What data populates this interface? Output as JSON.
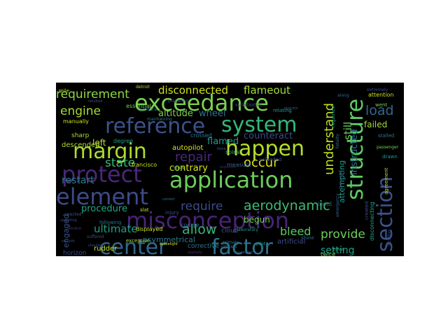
{
  "image": {
    "type": "word-cloud",
    "background": "#000000"
  },
  "words": [
    {
      "text": "exceedance",
      "color": "#7ad151"
    },
    {
      "text": "reference",
      "color": "#3b528b"
    },
    {
      "text": "system",
      "color": "#35b779"
    },
    {
      "text": "margin",
      "color": "#addc30"
    },
    {
      "text": "happen",
      "color": "#b5de2b"
    },
    {
      "text": "protect",
      "color": "#482878"
    },
    {
      "text": "application",
      "color": "#6ccd5a"
    },
    {
      "text": "element",
      "color": "#3e4a89"
    },
    {
      "text": "misconception",
      "color": "#482475"
    },
    {
      "text": "center",
      "color": "#31688e"
    },
    {
      "text": "factor",
      "color": "#2c728e"
    },
    {
      "text": "structure",
      "color": "#5ec962"
    },
    {
      "text": "section",
      "color": "#3b528b"
    },
    {
      "text": "aerodynamic",
      "color": "#3dbc74"
    },
    {
      "text": "understand",
      "color": "#c2df23"
    },
    {
      "text": "requirement",
      "color": "#8fd744"
    },
    {
      "text": "engine",
      "color": "#a8db34"
    },
    {
      "text": "disconnected",
      "color": "#d0e11c"
    },
    {
      "text": "flameout",
      "color": "#a2da37"
    },
    {
      "text": "load",
      "color": "#31688e"
    },
    {
      "text": "state",
      "color": "#3aba76"
    },
    {
      "text": "repair",
      "color": "#482878"
    },
    {
      "text": "occur",
      "color": "#dde318"
    },
    {
      "text": "require",
      "color": "#3e4a89"
    },
    {
      "text": "allow",
      "color": "#35b779"
    },
    {
      "text": "provide",
      "color": "#70cf57"
    },
    {
      "text": "bleed",
      "color": "#5ec962"
    },
    {
      "text": "ultimate",
      "color": "#1f9e89"
    },
    {
      "text": "procedure",
      "color": "#22a785"
    },
    {
      "text": "setting",
      "color": "#1f9e89"
    },
    {
      "text": "instructed",
      "color": "#2a788e"
    },
    {
      "text": "still",
      "color": "#6ccd5a"
    },
    {
      "text": "restart",
      "color": "#287c8e"
    },
    {
      "text": "contrary",
      "color": "#dde318"
    },
    {
      "text": "altitude",
      "color": "#7ad151"
    },
    {
      "text": "wheel",
      "color": "#2c728e"
    },
    {
      "text": "flamed",
      "color": "#1f9e89"
    },
    {
      "text": "left",
      "color": "#bddf26"
    },
    {
      "text": "counteract",
      "color": "#3e4a89"
    },
    {
      "text": "failed",
      "color": "#a2da37"
    },
    {
      "text": "attempting",
      "color": "#1f9e89"
    },
    {
      "text": "begun",
      "color": "#75d054"
    },
    {
      "text": "asymmetrical",
      "color": "#2a788e"
    },
    {
      "text": "engaged",
      "color": "#3b528b"
    },
    {
      "text": "corrective",
      "color": "#2a788e"
    },
    {
      "text": "rudder",
      "color": "#c8e020"
    },
    {
      "text": "horizon",
      "color": "#3e4a89"
    },
    {
      "text": "descended",
      "color": "#addc30"
    },
    {
      "text": "sharp",
      "color": "#a8db34"
    },
    {
      "text": "manually",
      "color": "#cae11f"
    },
    {
      "text": "essential",
      "color": "#7ad151"
    },
    {
      "text": "autopilot",
      "color": "#dde318"
    },
    {
      "text": "degree",
      "color": "#1f9e89"
    },
    {
      "text": "crossed",
      "color": "#2a788e"
    },
    {
      "text": "slow",
      "color": "#35b779"
    },
    {
      "text": "spiral",
      "color": "#3aba76"
    },
    {
      "text": "measure",
      "color": "#31688e"
    },
    {
      "text": "artificial",
      "color": "#3e4a89"
    },
    {
      "text": "cloud",
      "color": "#3b528b"
    },
    {
      "text": "input",
      "color": "#2c728e"
    },
    {
      "text": "twice",
      "color": "#7ad151"
    },
    {
      "text": "course",
      "color": "#31688e"
    },
    {
      "text": "injury",
      "color": "#3b528b"
    },
    {
      "text": "regained",
      "color": "#1f9e89"
    },
    {
      "text": "created",
      "color": "#3e4a89"
    },
    {
      "text": "disconnecting",
      "color": "#22a785"
    },
    {
      "text": "stalled",
      "color": "#2a788e"
    },
    {
      "text": "attention",
      "color": "#cae11f"
    },
    {
      "text": "went",
      "color": "#75d054"
    },
    {
      "text": "drawn",
      "color": "#1f9e89"
    },
    {
      "text": "agreement",
      "color": "#addc30"
    },
    {
      "text": "passenger",
      "color": "#7ad151"
    },
    {
      "text": "francisco",
      "color": "#cae11f"
    },
    {
      "text": "displayed",
      "color": "#c8e020"
    },
    {
      "text": "following",
      "color": "#2c728e"
    },
    {
      "text": "excessive",
      "color": "#addc30"
    },
    {
      "text": "detroit",
      "color": "#bddf26"
    },
    {
      "text": "mile",
      "color": "#c2df23"
    },
    {
      "text": "substantial",
      "color": "#3e4a89"
    },
    {
      "text": "relating",
      "color": "#1f9e89"
    },
    {
      "text": "extremely",
      "color": "#3e4a89"
    },
    {
      "text": "along",
      "color": "#31688e"
    },
    {
      "text": "slat",
      "color": "#c8e020"
    },
    {
      "text": "severe",
      "color": "#482878"
    },
    {
      "text": "laboratory",
      "color": "#1f9e89"
    },
    {
      "text": "rejected",
      "color": "#3b528b"
    },
    {
      "text": "contact",
      "color": "#2a788e"
    },
    {
      "text": "valanded",
      "color": "#3e4a89"
    },
    {
      "text": "shine",
      "color": "#31688e"
    },
    {
      "text": "primary",
      "color": "#2a788e"
    },
    {
      "text": "locating",
      "color": "#3b528b"
    },
    {
      "text": "spatially",
      "color": "#482878"
    },
    {
      "text": "smooth",
      "color": "#3e4a89"
    },
    {
      "text": "maintaining",
      "color": "#2a788e"
    },
    {
      "text": "resulted",
      "color": "#3b528b"
    },
    {
      "text": "preparing",
      "color": "#3e4a89"
    },
    {
      "text": "emergency",
      "color": "#31688e"
    },
    {
      "text": "fatality",
      "color": "#2c728e"
    },
    {
      "text": "pilot",
      "color": "#1f9e89"
    },
    {
      "text": "travel",
      "color": "#35b779"
    },
    {
      "text": "shoulder",
      "color": "#3e4a89"
    },
    {
      "text": "produce",
      "color": "#2a788e"
    },
    {
      "text": "respected",
      "color": "#3b528b"
    },
    {
      "text": "suffered",
      "color": "#3e4a89"
    },
    {
      "text": "upsetting",
      "color": "#3b528b"
    },
    {
      "text": "spacelight",
      "color": "#dde318"
    },
    {
      "text": "exposure",
      "color": "#482878"
    },
    {
      "text": "correct",
      "color": "#2a788e"
    },
    {
      "text": "distracted",
      "color": "#3e4a89"
    },
    {
      "text": "force",
      "color": "#31688e"
    },
    {
      "text": "operate",
      "color": "#3b528b"
    }
  ]
}
